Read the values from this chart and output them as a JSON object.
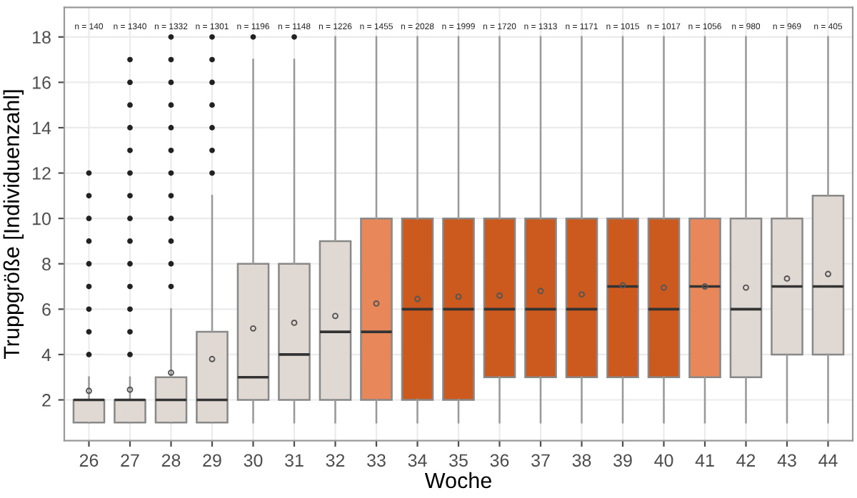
{
  "chart_data": {
    "type": "box",
    "xlabel": "Woche",
    "ylabel": "Truppgröße [Individuenzahl]",
    "categories": [
      "26",
      "27",
      "28",
      "29",
      "30",
      "31",
      "32",
      "33",
      "34",
      "35",
      "36",
      "37",
      "38",
      "39",
      "40",
      "41",
      "42",
      "43",
      "44"
    ],
    "colors": [
      "#e0d8d3",
      "#e0d8d3",
      "#e0d8d3",
      "#e0d8d3",
      "#e0d8d3",
      "#e0d8d3",
      "#e0d8d3",
      "#e8885a",
      "#cc5a1e",
      "#cc5a1e",
      "#cc5a1e",
      "#cc5a1e",
      "#cc5a1e",
      "#cc5a1e",
      "#cc5a1e",
      "#e8885a",
      "#e0d8d3",
      "#e0d8d3",
      "#e0d8d3"
    ],
    "boxes": [
      {
        "low": 1,
        "q1": 1,
        "median": 2,
        "q3": 2,
        "high": 3,
        "mean": 2.4,
        "outliers": [
          4,
          5,
          6,
          7,
          8,
          9,
          10,
          11,
          12
        ]
      },
      {
        "low": 1,
        "q1": 1,
        "median": 2,
        "q3": 2,
        "high": 3,
        "mean": 2.45,
        "outliers": [
          4,
          5,
          6,
          7,
          8,
          9,
          10,
          11,
          12,
          13,
          14,
          15,
          16,
          17
        ]
      },
      {
        "low": 1,
        "q1": 1,
        "median": 2,
        "q3": 3,
        "high": 6,
        "mean": 3.2,
        "outliers": [
          7,
          8,
          9,
          10,
          11,
          12,
          13,
          14,
          15,
          16,
          17,
          18
        ]
      },
      {
        "low": 1,
        "q1": 1,
        "median": 2,
        "q3": 5,
        "high": 11,
        "mean": 3.8,
        "outliers": [
          12,
          13,
          14,
          15,
          16,
          17,
          18
        ]
      },
      {
        "low": 1,
        "q1": 2,
        "median": 3,
        "q3": 8,
        "high": 17,
        "mean": 5.15,
        "outliers": [
          18
        ]
      },
      {
        "low": 1,
        "q1": 2,
        "median": 4,
        "q3": 8,
        "high": 17,
        "mean": 5.4,
        "outliers": [
          18
        ]
      },
      {
        "low": 1,
        "q1": 2,
        "median": 5,
        "q3": 9,
        "high": 18,
        "mean": 5.7
      },
      {
        "low": 1,
        "q1": 2,
        "median": 5,
        "q3": 10,
        "high": 18,
        "mean": 6.25
      },
      {
        "low": 1,
        "q1": 2,
        "median": 6,
        "q3": 10,
        "high": 18,
        "mean": 6.45
      },
      {
        "low": 1,
        "q1": 2,
        "median": 6,
        "q3": 10,
        "high": 18,
        "mean": 6.55
      },
      {
        "low": 1,
        "q1": 3,
        "median": 6,
        "q3": 10,
        "high": 18,
        "mean": 6.6
      },
      {
        "low": 1,
        "q1": 3,
        "median": 6,
        "q3": 10,
        "high": 18,
        "mean": 6.8
      },
      {
        "low": 1,
        "q1": 3,
        "median": 6,
        "q3": 10,
        "high": 18,
        "mean": 6.65
      },
      {
        "low": 1,
        "q1": 3,
        "median": 7,
        "q3": 10,
        "high": 18,
        "mean": 7.05
      },
      {
        "low": 1,
        "q1": 3,
        "median": 6,
        "q3": 10,
        "high": 18,
        "mean": 6.95
      },
      {
        "low": 1,
        "q1": 3,
        "median": 7,
        "q3": 10,
        "high": 18,
        "mean": 7.0
      },
      {
        "low": 1,
        "q1": 3,
        "median": 6,
        "q3": 10,
        "high": 18,
        "mean": 6.95
      },
      {
        "low": 1,
        "q1": 4,
        "median": 7,
        "q3": 10,
        "high": 18,
        "mean": 7.35
      },
      {
        "low": 1,
        "q1": 4,
        "median": 7,
        "q3": 11,
        "high": 18,
        "mean": 7.55
      }
    ],
    "ylim": [
      0.2,
      19.3
    ],
    "yticks": [
      2,
      4,
      6,
      8,
      10,
      12,
      14,
      16,
      18
    ],
    "grid": true,
    "annotations": [
      "n = 140",
      "n = 1340",
      "n = 1332",
      "n = 1301",
      "n = 1196",
      "n = 1148",
      "n = 1226",
      "n = 1455",
      "n = 2028",
      "n = 1999",
      "n = 1720",
      "n = 1313",
      "n = 1171",
      "n = 1015",
      "n = 1017",
      "n = 1056",
      "n = 980",
      "n = 969",
      "n = 405"
    ]
  }
}
